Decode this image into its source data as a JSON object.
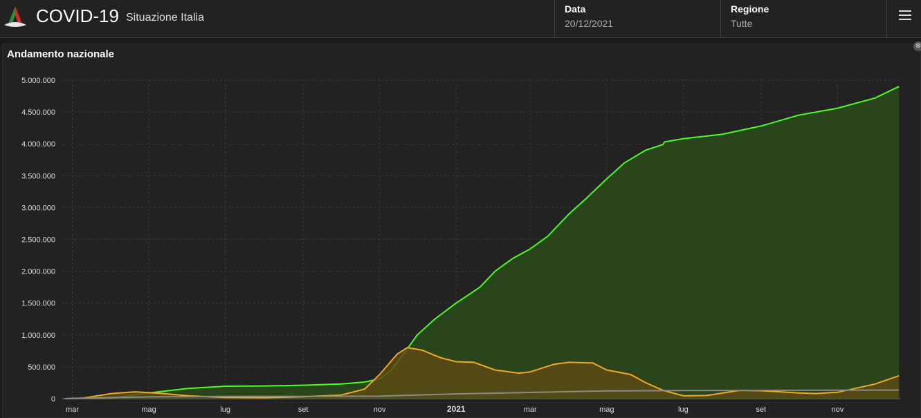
{
  "header": {
    "app_title": "COVID-19",
    "app_subtitle": "Situazione Italia",
    "date_label": "Data",
    "date_value": "20/12/2021",
    "region_label": "Regione",
    "region_value": "Tutte",
    "menu_icon": "hamburger-icon",
    "logo_icon": "italian-civil-protection-logo"
  },
  "panel": {
    "title": "Andamento nazionale",
    "close_glyph": "⊗"
  },
  "colors": {
    "green": "#4dff1f",
    "green_fill": "#2c4a1a",
    "orange": "#f2a822",
    "orange_fill": "#5a4a14",
    "gray": "#8a8a8a",
    "grid": "#3a3a3a"
  },
  "chart_data": {
    "type": "area",
    "title": "",
    "ylim": [
      0,
      5000000
    ],
    "yticks": [
      0,
      500000,
      1000000,
      1500000,
      2000000,
      2500000,
      3000000,
      3500000,
      4000000,
      4500000,
      5000000
    ],
    "ytick_labels": [
      "0",
      "500.000",
      "1.000.000",
      "1.500.000",
      "2.000.000",
      "2.500.000",
      "3.000.000",
      "3.500.000",
      "4.000.000",
      "4.500.000",
      "5.000.000"
    ],
    "xticks": [
      {
        "date": "2020-03-01",
        "label": "mar"
      },
      {
        "date": "2020-05-01",
        "label": "mag"
      },
      {
        "date": "2020-07-01",
        "label": "lug"
      },
      {
        "date": "2020-09-01",
        "label": "set"
      },
      {
        "date": "2020-11-01",
        "label": "nov"
      },
      {
        "date": "2021-01-01",
        "label": "2021",
        "bold": true
      },
      {
        "date": "2021-03-01",
        "label": "mar"
      },
      {
        "date": "2021-05-01",
        "label": "mag"
      },
      {
        "date": "2021-07-01",
        "label": "lug"
      },
      {
        "date": "2021-09-01",
        "label": "set"
      },
      {
        "date": "2021-11-01",
        "label": "nov"
      }
    ],
    "grid": true,
    "series": [
      {
        "color": "#4dff1f",
        "fill": "#2c4a1a",
        "points": [
          [
            "2020-02-24",
            0
          ],
          [
            "2020-04-01",
            10000
          ],
          [
            "2020-05-01",
            90000
          ],
          [
            "2020-06-01",
            160000
          ],
          [
            "2020-07-01",
            195000
          ],
          [
            "2020-08-01",
            200000
          ],
          [
            "2020-09-01",
            210000
          ],
          [
            "2020-10-01",
            230000
          ],
          [
            "2020-10-20",
            260000
          ],
          [
            "2020-11-01",
            310000
          ],
          [
            "2020-11-10",
            440000
          ],
          [
            "2020-11-20",
            700000
          ],
          [
            "2020-12-01",
            1000000
          ],
          [
            "2020-12-15",
            1250000
          ],
          [
            "2021-01-01",
            1500000
          ],
          [
            "2021-01-20",
            1750000
          ],
          [
            "2021-02-01",
            2000000
          ],
          [
            "2021-02-15",
            2200000
          ],
          [
            "2021-03-01",
            2350000
          ],
          [
            "2021-03-15",
            2550000
          ],
          [
            "2021-04-01",
            2900000
          ],
          [
            "2021-04-15",
            3150000
          ],
          [
            "2021-05-01",
            3450000
          ],
          [
            "2021-05-15",
            3700000
          ],
          [
            "2021-06-01",
            3900000
          ],
          [
            "2021-06-15",
            3990000
          ],
          [
            "2021-06-16",
            4030000
          ],
          [
            "2021-07-01",
            4080000
          ],
          [
            "2021-08-01",
            4150000
          ],
          [
            "2021-09-01",
            4280000
          ],
          [
            "2021-10-01",
            4450000
          ],
          [
            "2021-11-01",
            4560000
          ],
          [
            "2021-12-01",
            4720000
          ],
          [
            "2021-12-20",
            4900000
          ]
        ]
      },
      {
        "color": "#f2a822",
        "fill": "#5a4a14",
        "points": [
          [
            "2020-02-24",
            0
          ],
          [
            "2020-03-10",
            10000
          ],
          [
            "2020-04-01",
            80000
          ],
          [
            "2020-04-20",
            107000
          ],
          [
            "2020-05-10",
            85000
          ],
          [
            "2020-06-01",
            45000
          ],
          [
            "2020-07-01",
            20000
          ],
          [
            "2020-08-01",
            15000
          ],
          [
            "2020-09-01",
            30000
          ],
          [
            "2020-10-01",
            55000
          ],
          [
            "2020-10-20",
            150000
          ],
          [
            "2020-11-01",
            380000
          ],
          [
            "2020-11-15",
            700000
          ],
          [
            "2020-11-23",
            800000
          ],
          [
            "2020-12-05",
            760000
          ],
          [
            "2020-12-20",
            640000
          ],
          [
            "2021-01-01",
            580000
          ],
          [
            "2021-01-15",
            570000
          ],
          [
            "2021-02-01",
            450000
          ],
          [
            "2021-02-20",
            400000
          ],
          [
            "2021-03-01",
            420000
          ],
          [
            "2021-03-20",
            540000
          ],
          [
            "2021-04-01",
            570000
          ],
          [
            "2021-04-20",
            560000
          ],
          [
            "2021-05-01",
            450000
          ],
          [
            "2021-05-20",
            380000
          ],
          [
            "2021-06-01",
            250000
          ],
          [
            "2021-06-15",
            130000
          ],
          [
            "2021-07-01",
            45000
          ],
          [
            "2021-07-20",
            50000
          ],
          [
            "2021-08-15",
            130000
          ],
          [
            "2021-09-01",
            125000
          ],
          [
            "2021-10-01",
            90000
          ],
          [
            "2021-10-15",
            80000
          ],
          [
            "2021-11-01",
            100000
          ],
          [
            "2021-12-01",
            230000
          ],
          [
            "2021-12-20",
            360000
          ]
        ]
      },
      {
        "color": "#8a8a8a",
        "fill": null,
        "points": [
          [
            "2020-02-24",
            0
          ],
          [
            "2020-05-01",
            28000
          ],
          [
            "2020-07-01",
            34800
          ],
          [
            "2020-09-01",
            35600
          ],
          [
            "2020-11-01",
            39000
          ],
          [
            "2021-01-01",
            75000
          ],
          [
            "2021-03-01",
            98000
          ],
          [
            "2021-05-01",
            122000
          ],
          [
            "2021-07-01",
            127000
          ],
          [
            "2021-09-01",
            130000
          ],
          [
            "2021-11-01",
            132000
          ],
          [
            "2021-12-20",
            135000
          ]
        ]
      }
    ]
  }
}
